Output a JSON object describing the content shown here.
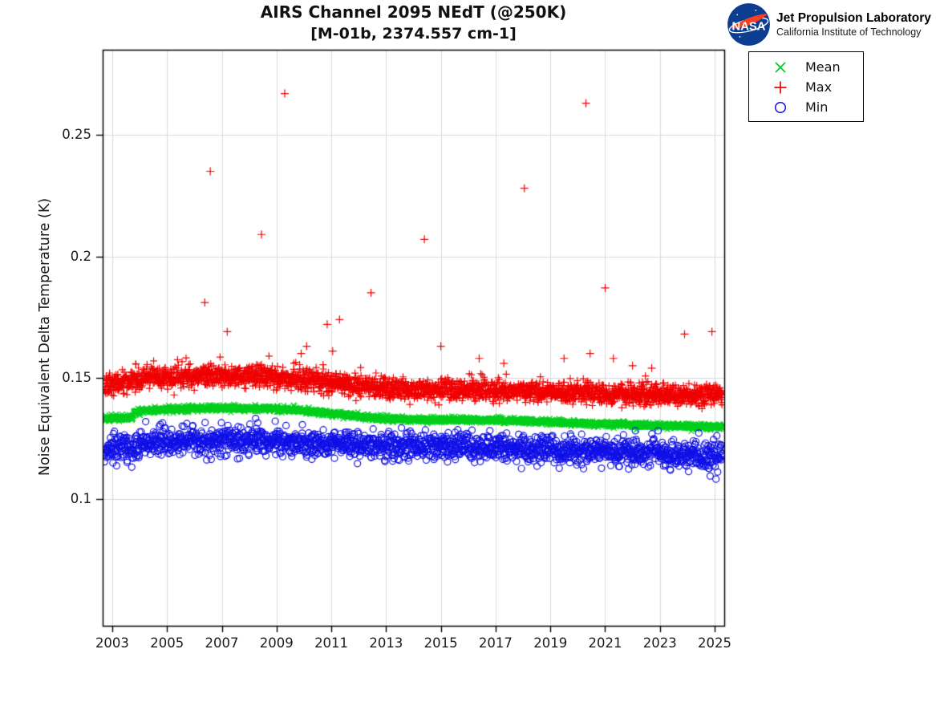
{
  "header": {
    "title": "AIRS Channel 2095 NEdT (@250K)",
    "subtitle": "[M-01b, 2374.557 cm-1]"
  },
  "logo": {
    "nasa_wordmark": "NASA",
    "org": "Jet Propulsion Laboratory",
    "org_sub": "California Institute of Technology",
    "nasa_blue": "#0b3d91",
    "nasa_red": "#fc3d21"
  },
  "chart_data": {
    "type": "scatter",
    "title": "AIRS Channel 2095 NEdT (@250K)",
    "subtitle": "[M-01b, 2374.557 cm-1]",
    "xlabel": "",
    "ylabel": "Noise Equivalent Delta Temperature (K)",
    "xlim": [
      2002.65,
      2025.35
    ],
    "ylim": [
      0.048,
      0.285
    ],
    "xticks": [
      2003,
      2005,
      2007,
      2009,
      2011,
      2013,
      2015,
      2017,
      2019,
      2021,
      2023,
      2025
    ],
    "xtick_labels": [
      "2003",
      "2005",
      "2007",
      "2009",
      "2011",
      "2013",
      "2015",
      "2017",
      "2019",
      "2021",
      "2023",
      "2025"
    ],
    "yticks": [
      0.1,
      0.15,
      0.2,
      0.25
    ],
    "ytick_labels": [
      "0.1",
      "0.15",
      "0.2",
      "0.25"
    ],
    "grid": true,
    "grid_color": "#d8d8d8",
    "axis_color": "#000000",
    "seed": 11,
    "legend": {
      "position": "outside-top-right",
      "entries": [
        {
          "label": "Mean",
          "marker": "x",
          "color": "#00cf1d"
        },
        {
          "label": "Max",
          "marker": "plus",
          "color": "#f00000"
        },
        {
          "label": "Min",
          "marker": "circle",
          "color": "#1010e8"
        }
      ]
    },
    "series": [
      {
        "name": "Max",
        "marker": "plus",
        "color": "#f00000",
        "n": 2600,
        "sigma": 0.0021,
        "tail_prob": 0.08,
        "tail": 0.005,
        "trend": [
          [
            2002.72,
            0.147
          ],
          [
            2003.1,
            0.1475
          ],
          [
            2003.7,
            0.148
          ],
          [
            2003.8,
            0.1497
          ],
          [
            2005,
            0.1502
          ],
          [
            2006.5,
            0.1506
          ],
          [
            2008.5,
            0.1504
          ],
          [
            2010,
            0.1494
          ],
          [
            2011,
            0.1482
          ],
          [
            2012,
            0.1468
          ],
          [
            2013,
            0.1455
          ],
          [
            2014,
            0.1452
          ],
          [
            2015.5,
            0.145
          ],
          [
            2017,
            0.1446
          ],
          [
            2018.5,
            0.1441
          ],
          [
            2020,
            0.1437
          ],
          [
            2021.5,
            0.1432
          ],
          [
            2023,
            0.1428
          ],
          [
            2024.5,
            0.1425
          ],
          [
            2025.28,
            0.1436
          ]
        ],
        "outliers": [
          [
            2006.38,
            0.181
          ],
          [
            2006.58,
            0.235
          ],
          [
            2007.2,
            0.169
          ],
          [
            2008.45,
            0.209
          ],
          [
            2009.3,
            0.267
          ],
          [
            2009.9,
            0.16
          ],
          [
            2010.1,
            0.163
          ],
          [
            2010.85,
            0.172
          ],
          [
            2011.05,
            0.161
          ],
          [
            2011.3,
            0.174
          ],
          [
            2012.45,
            0.185
          ],
          [
            2014.4,
            0.207
          ],
          [
            2015.0,
            0.163
          ],
          [
            2016.4,
            0.158
          ],
          [
            2017.3,
            0.156
          ],
          [
            2018.05,
            0.228
          ],
          [
            2019.5,
            0.158
          ],
          [
            2020.3,
            0.263
          ],
          [
            2020.45,
            0.16
          ],
          [
            2021.0,
            0.187
          ],
          [
            2021.3,
            0.158
          ],
          [
            2022.0,
            0.155
          ],
          [
            2022.7,
            0.154
          ],
          [
            2023.9,
            0.168
          ],
          [
            2024.9,
            0.169
          ]
        ]
      },
      {
        "name": "Mean",
        "marker": "x",
        "color": "#00cf1d",
        "n": 2600,
        "sigma": 0.00055,
        "tail_prob": 0.02,
        "tail": 0.0012,
        "trend": [
          [
            2002.72,
            0.1332
          ],
          [
            2003.3,
            0.1334
          ],
          [
            2003.74,
            0.1336
          ],
          [
            2003.8,
            0.136
          ],
          [
            2004.3,
            0.1366
          ],
          [
            2005,
            0.137
          ],
          [
            2006,
            0.1374
          ],
          [
            2007.5,
            0.1376
          ],
          [
            2008.7,
            0.1373
          ],
          [
            2009.5,
            0.1369
          ],
          [
            2010.3,
            0.1362
          ],
          [
            2011,
            0.1354
          ],
          [
            2011.8,
            0.1344
          ],
          [
            2012.5,
            0.1337
          ],
          [
            2013.2,
            0.133
          ],
          [
            2014,
            0.1328
          ],
          [
            2016,
            0.1327
          ],
          [
            2017.5,
            0.1324
          ],
          [
            2019,
            0.1318
          ],
          [
            2020.5,
            0.1312
          ],
          [
            2022,
            0.1306
          ],
          [
            2023.5,
            0.1302
          ],
          [
            2025.28,
            0.1297
          ]
        ],
        "outliers": []
      },
      {
        "name": "Min",
        "marker": "circle",
        "color": "#1010e8",
        "n": 2000,
        "sigma": 0.0028,
        "tail_prob": 0.06,
        "tail": -0.0055,
        "trend": [
          [
            2002.72,
            0.1206
          ],
          [
            2003.2,
            0.121
          ],
          [
            2003.74,
            0.1212
          ],
          [
            2003.8,
            0.123
          ],
          [
            2004.5,
            0.1238
          ],
          [
            2005.5,
            0.1242
          ],
          [
            2007,
            0.1244
          ],
          [
            2009,
            0.1241
          ],
          [
            2010.5,
            0.1234
          ],
          [
            2012,
            0.1226
          ],
          [
            2013.5,
            0.122
          ],
          [
            2015,
            0.1218
          ],
          [
            2016.5,
            0.1216
          ],
          [
            2018,
            0.121
          ],
          [
            2019.5,
            0.1205
          ],
          [
            2021,
            0.1199
          ],
          [
            2022.5,
            0.1192
          ],
          [
            2024,
            0.1184
          ],
          [
            2025.28,
            0.118
          ]
        ],
        "outliers": [
          [
            2021.5,
            0.1135
          ],
          [
            2024.8,
            0.1128
          ],
          [
            2023.2,
            0.1138
          ]
        ]
      }
    ]
  }
}
